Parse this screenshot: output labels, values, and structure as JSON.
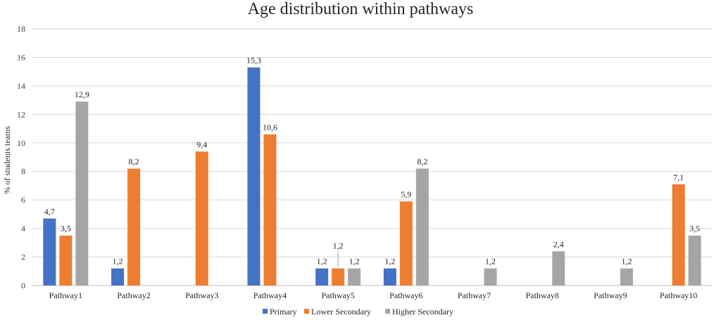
{
  "chart_data": {
    "type": "bar",
    "title": "Age distribution within pathways",
    "xlabel": "",
    "ylabel": "% of students teams",
    "ylim": [
      0,
      18
    ],
    "yticks": [
      "0",
      "2",
      "4",
      "6",
      "8",
      "10",
      "12",
      "14",
      "16",
      "18"
    ],
    "grid": true,
    "legend_position": "bottom",
    "categories": [
      "Pathway1",
      "Pathway2",
      "Pathway3",
      "Pathway4",
      "Pathway5",
      "Pathway6",
      "Pathway7",
      "Pathway8",
      "Pathway9",
      "Pathway10"
    ],
    "series": [
      {
        "name": "Primary",
        "color": "#4472c4",
        "values": [
          4.7,
          1.2,
          null,
          15.3,
          1.2,
          1.2,
          null,
          null,
          null,
          null
        ],
        "labels": [
          "4,7",
          "1,2",
          null,
          "15,3",
          "1,2",
          "1,2",
          null,
          null,
          null,
          null
        ]
      },
      {
        "name": "Lower Secondary",
        "color": "#ed7d31",
        "values": [
          3.5,
          8.2,
          9.4,
          10.6,
          1.2,
          5.9,
          null,
          null,
          null,
          7.1
        ],
        "labels": [
          "3,5",
          "8,2",
          "9,4",
          "10,6",
          "1,2",
          "5,9",
          null,
          null,
          null,
          "7,1"
        ]
      },
      {
        "name": "Higher Secondary",
        "color": "#a5a5a5",
        "values": [
          12.9,
          null,
          null,
          null,
          1.2,
          8.2,
          1.2,
          2.4,
          1.2,
          3.5
        ],
        "labels": [
          "12,9",
          null,
          null,
          null,
          "1,2",
          "8,2",
          "1,2",
          "2,4",
          "1,2",
          "3,5"
        ]
      }
    ]
  }
}
